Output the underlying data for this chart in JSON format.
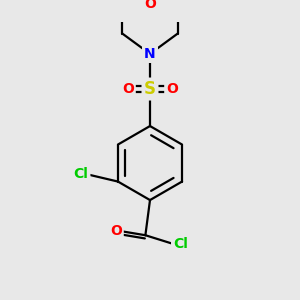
{
  "bg_color": "#e8e8e8",
  "bond_color": "#000000",
  "atom_colors": {
    "O": "#ff0000",
    "N": "#0000ff",
    "S": "#cccc00",
    "Cl": "#00cc00",
    "C": "#000000"
  },
  "bond_lw": 1.6,
  "font_size": 10,
  "figsize": [
    3.0,
    3.0
  ],
  "dpi": 100
}
